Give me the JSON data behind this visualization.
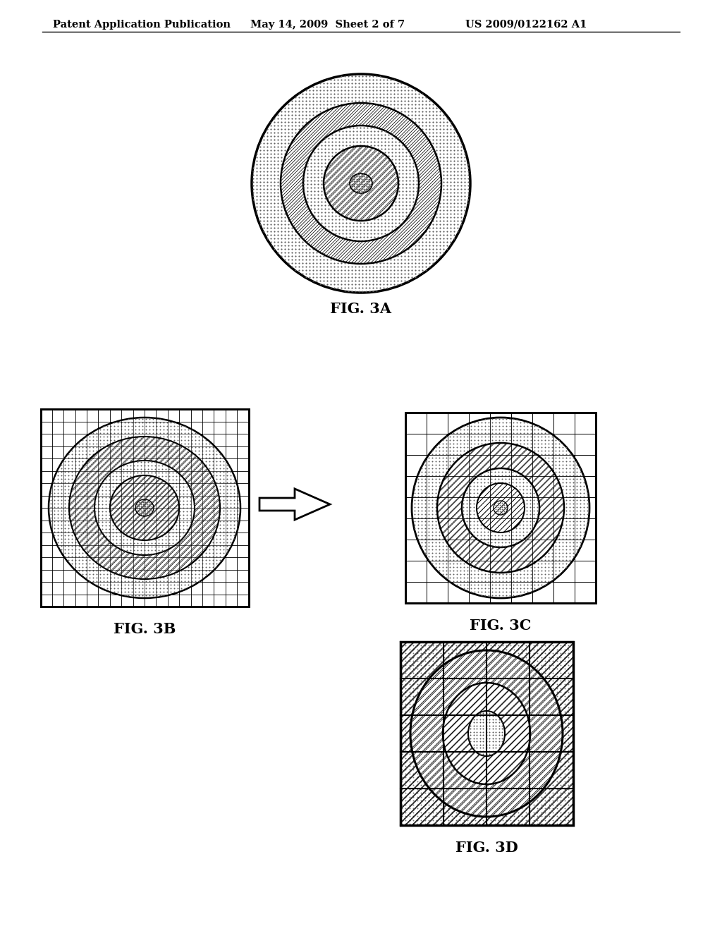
{
  "header_left": "Patent Application Publication",
  "header_mid": "May 14, 2009  Sheet 2 of 7",
  "header_right": "US 2009/0122162 A1",
  "fig3a_label": "FIG. 3A",
  "fig3b_label": "FIG. 3B",
  "fig3c_label": "FIG. 3C",
  "fig3d_label": "FIG. 3D",
  "bg_color": "#ffffff"
}
